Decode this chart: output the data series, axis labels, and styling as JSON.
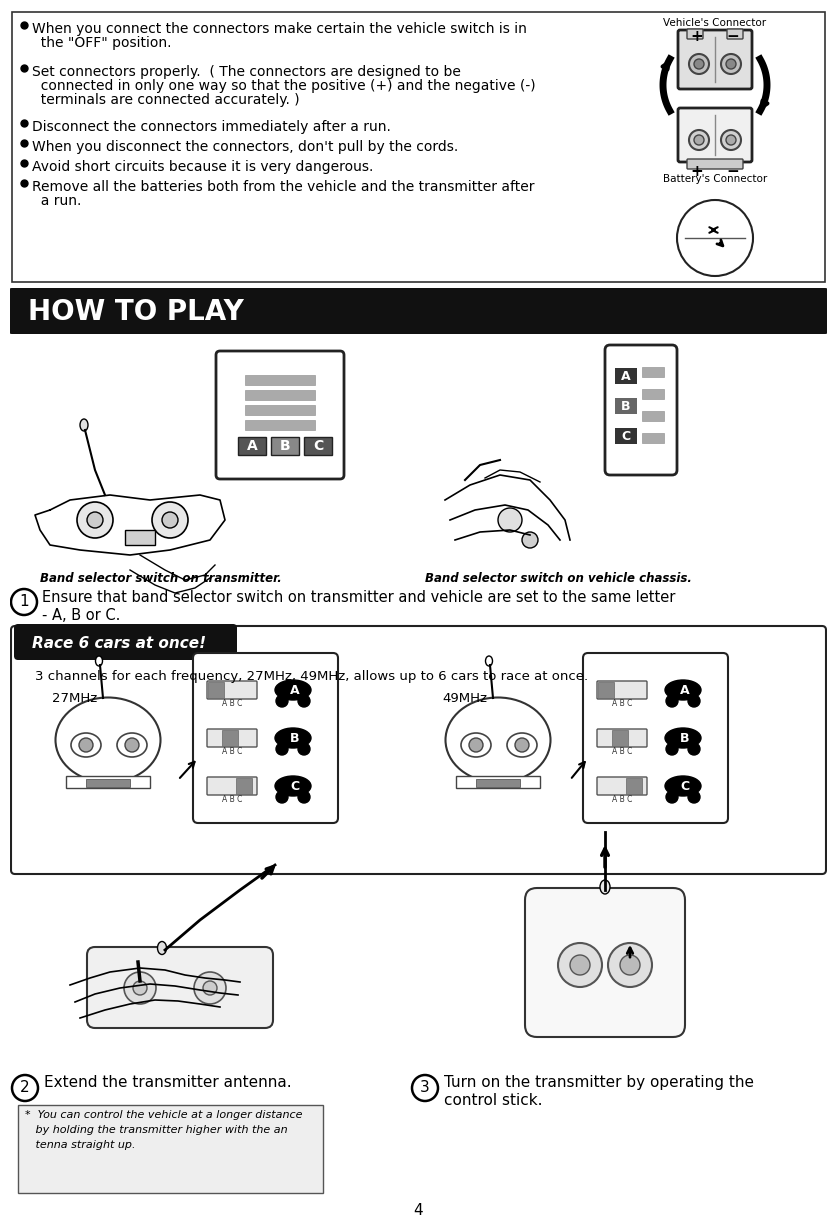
{
  "bg_color": "#ffffff",
  "page_number": "4",
  "bullets": [
    [
      "When you connect the connectors make certain the vehicle switch is in",
      "  the \"OFF\" position."
    ],
    [
      "Set connectors properly.  ( The connectors are designed to be",
      "  connected in only one way so that the positive (+) and the negative (-)",
      "  terminals are connected accurately. )"
    ],
    [
      "Disconnect the connectors immediately after a run."
    ],
    [
      "When you disconnect the connectors, don't pull by the cords."
    ],
    [
      "Avoid short circuits because it is very dangerous."
    ],
    [
      "Remove all the batteries both from the vehicle and the transmitter after",
      "  a run."
    ]
  ],
  "vehicle_connector_label": "Vehicle's Connector",
  "battery_connector_label": "Battery's Connector",
  "how_to_play_title": "HOW TO PLAY",
  "how_to_play_bg": "#111111",
  "how_to_play_text_color": "#ffffff",
  "band_label_left": "Band selector switch on transmitter.",
  "band_label_right": "Band selector switch on vehicle chassis.",
  "step1_num": "1",
  "step1_text_line1": "Ensure that band selector switch on transmitter and vehicle are set to the same letter",
  "step1_text_line2": "- A, B or C.",
  "race_box_title": "Race 6 cars at once!",
  "race_box_bg": "#111111",
  "race_box_text_color": "#ffffff",
  "race_description": "3 channels for each frequency, 27MHz, 49MHz, allows up to 6 cars to race at once.",
  "freq_27": "27MHz",
  "freq_49": "49MHz",
  "step2_num": "2",
  "step2_text": "Extend the transmitter antenna.",
  "step3_num": "3",
  "step3_text_line1": "Turn on the transmitter by operating the",
  "step3_text_line2": "control stick.",
  "tip_text_line1": "*  You can control the vehicle at a longer distance",
  "tip_text_line2": "   by holding the transmitter higher with the an",
  "tip_text_line3": "   tenna straight up.",
  "abc_labels": [
    "A",
    "B",
    "C"
  ]
}
